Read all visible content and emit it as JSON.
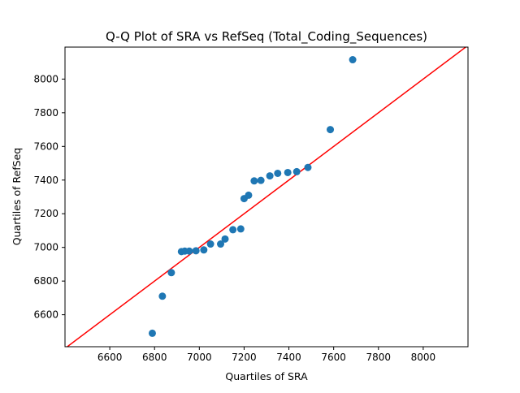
{
  "chart_data": {
    "type": "scatter",
    "title": "Q-Q Plot of SRA vs RefSeq (Total_Coding_Sequences)",
    "xlabel": "Quartiles of SRA",
    "ylabel": "Quartiles of RefSeq",
    "xlim": [
      6400,
      8200
    ],
    "ylim": [
      6410,
      8190
    ],
    "x_ticks": [
      6600,
      6800,
      7000,
      7200,
      7400,
      7600,
      7800,
      8000
    ],
    "y_ticks": [
      6600,
      6800,
      7000,
      7200,
      7400,
      7600,
      7800,
      8000
    ],
    "grid": false,
    "point_color": "#1f77b4",
    "line_color": "#ff0000",
    "reference_line": {
      "x": [
        6400,
        8200
      ],
      "y": [
        6400,
        8200
      ]
    },
    "points": [
      {
        "x": 6790,
        "y": 6490
      },
      {
        "x": 6835,
        "y": 6710
      },
      {
        "x": 6875,
        "y": 6850
      },
      {
        "x": 6920,
        "y": 6975
      },
      {
        "x": 6935,
        "y": 6978
      },
      {
        "x": 6955,
        "y": 6978
      },
      {
        "x": 6985,
        "y": 6980
      },
      {
        "x": 7020,
        "y": 6985
      },
      {
        "x": 7050,
        "y": 7020
      },
      {
        "x": 7095,
        "y": 7020
      },
      {
        "x": 7115,
        "y": 7050
      },
      {
        "x": 7150,
        "y": 7105
      },
      {
        "x": 7185,
        "y": 7110
      },
      {
        "x": 7200,
        "y": 7290
      },
      {
        "x": 7220,
        "y": 7310
      },
      {
        "x": 7245,
        "y": 7395
      },
      {
        "x": 7275,
        "y": 7398
      },
      {
        "x": 7315,
        "y": 7425
      },
      {
        "x": 7350,
        "y": 7440
      },
      {
        "x": 7395,
        "y": 7445
      },
      {
        "x": 7435,
        "y": 7450
      },
      {
        "x": 7485,
        "y": 7475
      },
      {
        "x": 7585,
        "y": 7700
      },
      {
        "x": 7685,
        "y": 8115
      }
    ]
  }
}
